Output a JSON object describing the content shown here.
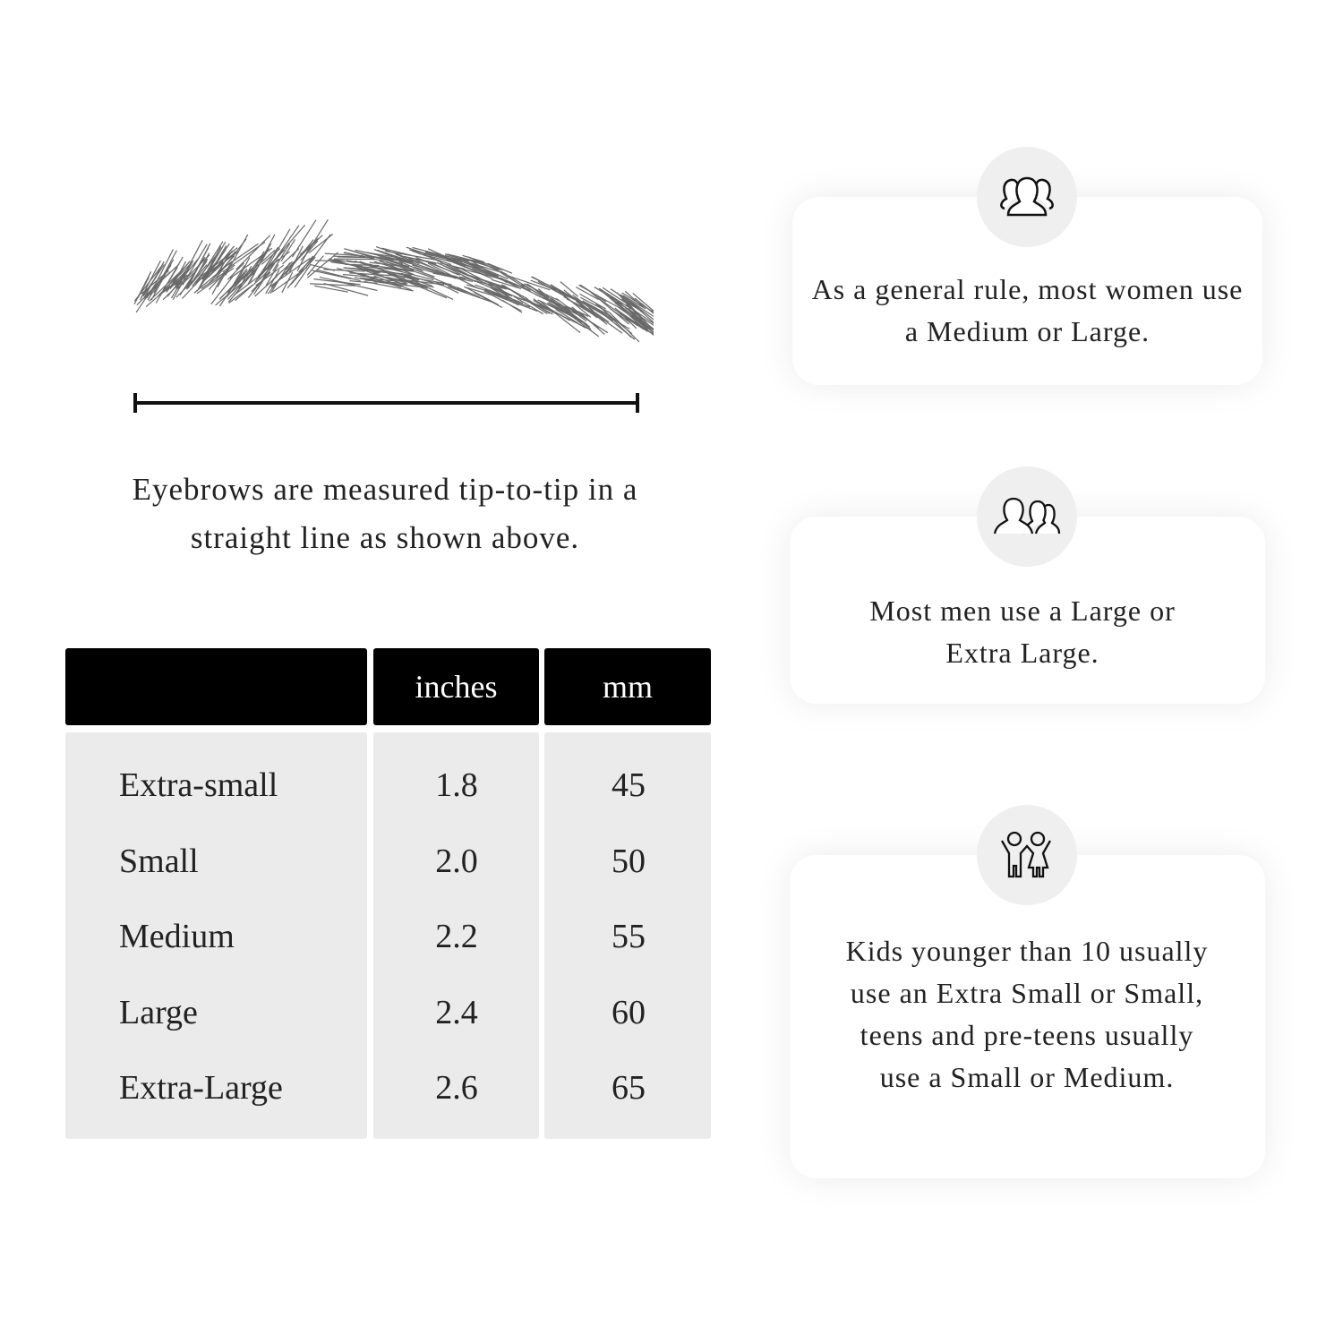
{
  "caption": "Eyebrows are measured tip-to-tip in a straight line as shown above.",
  "table": {
    "headers": [
      "",
      "inches",
      "mm"
    ],
    "rows": [
      {
        "size": "Extra-small",
        "inches": "1.8",
        "mm": "45"
      },
      {
        "size": "Small",
        "inches": "2.0",
        "mm": "50"
      },
      {
        "size": "Medium",
        "inches": "2.2",
        "mm": "55"
      },
      {
        "size": "Large",
        "inches": "2.4",
        "mm": "60"
      },
      {
        "size": "Extra-Large",
        "inches": "2.6",
        "mm": "65"
      }
    ]
  },
  "cards": [
    {
      "icon": "women-group-icon",
      "text": "As a general rule, most women use a Medium or Large."
    },
    {
      "icon": "men-group-icon",
      "text": "Most men use a Large or Extra Large."
    },
    {
      "icon": "kids-icon",
      "text": "Kids younger than 10 usually use an Extra Small or Small, teens and pre-teens usually use a Small or Medium."
    }
  ]
}
